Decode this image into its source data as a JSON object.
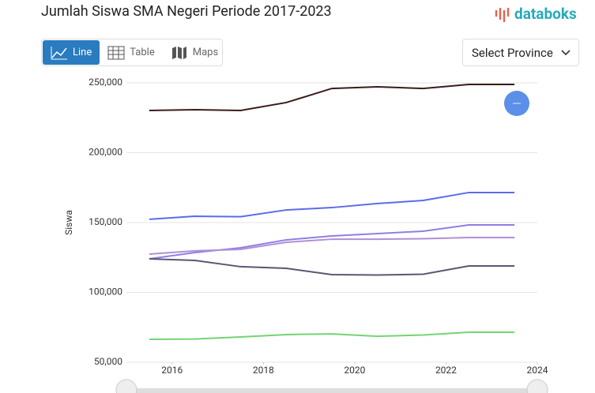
{
  "chart_data": {
    "type": "line",
    "title": "Jumlah Siswa SMA Negeri Periode 2017-2023",
    "y_label": "Siswa",
    "x": [
      2015.5,
      2016.5,
      2017.5,
      2018.5,
      2019.5,
      2020.5,
      2021.5,
      2022.5,
      2023.5
    ],
    "series": [
      {
        "color": "#3b1c1c",
        "values": [
          230200,
          230800,
          230200,
          235900,
          246000,
          247200,
          246000,
          248900,
          248900
        ]
      },
      {
        "color": "#5b6ce8",
        "values": [
          152300,
          154500,
          154200,
          159000,
          160700,
          163600,
          165800,
          171500,
          171500
        ]
      },
      {
        "color": "#8f7fe2",
        "values": [
          124000,
          128500,
          131900,
          137600,
          140400,
          142100,
          143800,
          148300,
          148300
        ]
      },
      {
        "color": "#ae90d6",
        "values": [
          127400,
          129700,
          130800,
          135900,
          138100,
          138100,
          138400,
          139300,
          139300
        ]
      },
      {
        "color": "#5c5670",
        "values": [
          124000,
          122900,
          118400,
          117200,
          112700,
          112400,
          113000,
          118900,
          118900
        ]
      },
      {
        "color": "#72d572",
        "values": [
          66400,
          66600,
          68100,
          69800,
          70300,
          68600,
          69500,
          71500,
          71500
        ]
      }
    ],
    "xlim": [
      2015,
      2024
    ],
    "xticks": [
      2016,
      2018,
      2020,
      2022,
      2024
    ],
    "ylim": [
      50000,
      250000
    ],
    "yticks": [
      {
        "value": 50000,
        "label": "50,000"
      },
      {
        "value": 100000,
        "label": "100,000"
      },
      {
        "value": 150000,
        "label": "150,000"
      },
      {
        "value": 200000,
        "label": "200,000"
      },
      {
        "value": 250000,
        "label": "250,000"
      }
    ],
    "grid": true
  },
  "ui": {
    "logo": "databoks",
    "tabs": [
      "Line",
      "Table",
      "Maps"
    ],
    "select": "Select Province"
  }
}
